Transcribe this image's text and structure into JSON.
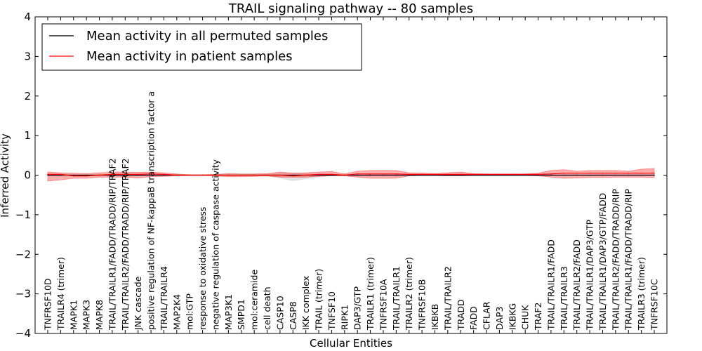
{
  "chart_data": {
    "type": "line",
    "title": "TRAIL signaling pathway -- 80 samples",
    "xlabel": "Cellular Entities",
    "ylabel": "Inferred Activity",
    "ylim": [
      -4,
      4
    ],
    "yticks": [
      4,
      3,
      2,
      1,
      0,
      -1,
      -2,
      -3,
      -4
    ],
    "ytick_labels": [
      "4",
      "3",
      "2",
      "1",
      "0",
      "−1",
      "−2",
      "−3",
      "−4"
    ],
    "grid": false,
    "legend_position": "top-left",
    "categories": [
      "TNFRSF10D",
      "TRAILR4 (trimer)",
      "MAPK1",
      "MAPK3",
      "MAPK8",
      "TRAIL/TRAILR1/FADD/TRADD/RIP/TRAF2",
      "TRAIL/TRAILR2/FADD/TRADD/RIP/TRAF2",
      "JNK cascade",
      "positive regulation of NF-kappaB transcription factor a",
      "TRAIL/TRAILR4",
      "MAP2K4",
      "mol:GTP",
      "response to oxidative stress",
      "negative regulation of caspase activity",
      "MAP3K1",
      "SMPD1",
      "mol:ceramide",
      "cell death",
      "CASP10",
      "CASP8",
      "IKK complex",
      "TRAIL (trimer)",
      "TNFSF10",
      "RIPK1",
      "DAP3/GTP",
      "TRAILR1 (trimer)",
      "TNFRSF10A",
      "TRAIL/TRAILR1",
      "TRAILR2 (trimer)",
      "TNFRSF10B",
      "IKBKB",
      "TRAIL/TRAILR2",
      "TRADD",
      "FADD",
      "CFLAR",
      "DAP3",
      "IKBKG",
      "CHUK",
      "TRAF2",
      "TRAIL/TRAILR1/FADD",
      "TRAIL/TRAILR3",
      "TRAIL/TRAILR2/FADD",
      "TRAIL/TRAILR1/DAP3/GTP",
      "TRAIL/TRAILR1/DAP3/GTP/FADD",
      "TRAIL/TRAILR2/FADD/TRADD/RIP",
      "TRAIL/TRAILR1/FADD/TRADD/RIP",
      "TRAILR3 (trimer)",
      "TNFRSF10C"
    ],
    "series": [
      {
        "name": "Mean activity in all permuted samples",
        "color": "#000000",
        "values": [
          0.0,
          0.0,
          0.0,
          0.0,
          0.0,
          0.0,
          0.0,
          0.0,
          0.0,
          0.0,
          0.0,
          0.0,
          0.0,
          0.0,
          0.0,
          0.0,
          0.0,
          0.0,
          0.0,
          0.0,
          0.0,
          0.0,
          0.0,
          0.0,
          0.0,
          0.0,
          0.0,
          0.0,
          0.0,
          0.0,
          0.0,
          0.0,
          0.0,
          0.0,
          0.0,
          0.0,
          0.0,
          0.0,
          0.0,
          0.0,
          0.0,
          0.0,
          0.0,
          0.0,
          0.0,
          0.0,
          0.0,
          0.0
        ],
        "band_upper": [
          0.03,
          0.03,
          0.02,
          0.02,
          0.02,
          0.03,
          0.03,
          0.03,
          0.02,
          0.02,
          0.02,
          0.01,
          0.01,
          0.01,
          0.02,
          0.02,
          0.02,
          0.03,
          0.05,
          0.06,
          0.05,
          0.03,
          0.02,
          0.02,
          0.02,
          0.02,
          0.02,
          0.02,
          0.02,
          0.02,
          0.02,
          0.02,
          0.02,
          0.02,
          0.02,
          0.02,
          0.02,
          0.02,
          0.02,
          0.02,
          0.02,
          0.02,
          0.02,
          0.02,
          0.02,
          0.02,
          0.02,
          0.02
        ],
        "band_lower": [
          -0.03,
          -0.03,
          -0.02,
          -0.02,
          -0.02,
          -0.03,
          -0.03,
          -0.03,
          -0.02,
          -0.02,
          -0.02,
          -0.01,
          -0.01,
          -0.01,
          -0.02,
          -0.02,
          -0.02,
          -0.03,
          -0.08,
          -0.15,
          -0.1,
          -0.05,
          -0.02,
          -0.02,
          -0.02,
          -0.02,
          -0.02,
          -0.02,
          -0.02,
          -0.02,
          -0.02,
          -0.02,
          -0.02,
          -0.02,
          -0.02,
          -0.02,
          -0.02,
          -0.02,
          -0.02,
          -0.02,
          -0.02,
          -0.02,
          -0.02,
          -0.02,
          -0.02,
          -0.02,
          -0.02,
          -0.02
        ]
      },
      {
        "name": "Mean activity in patient samples",
        "color": "#ff0000",
        "values": [
          0.02,
          0.02,
          -0.02,
          -0.02,
          0.0,
          0.02,
          0.02,
          0.02,
          0.03,
          0.02,
          0.0,
          0.0,
          0.0,
          0.0,
          0.0,
          0.0,
          0.0,
          0.0,
          0.0,
          -0.02,
          0.0,
          0.02,
          0.02,
          0.0,
          0.03,
          0.03,
          0.03,
          0.03,
          0.02,
          0.02,
          0.02,
          0.02,
          0.02,
          0.02,
          0.02,
          0.02,
          0.02,
          0.02,
          0.02,
          0.03,
          0.05,
          0.05,
          0.05,
          0.05,
          0.05,
          0.05,
          0.05,
          0.05
        ],
        "band_upper": [
          0.08,
          0.06,
          0.05,
          0.04,
          0.06,
          0.08,
          0.08,
          0.07,
          0.08,
          0.06,
          0.03,
          0.01,
          0.01,
          0.02,
          0.04,
          0.03,
          0.03,
          0.04,
          0.08,
          0.05,
          0.06,
          0.08,
          0.09,
          0.03,
          0.1,
          0.12,
          0.12,
          0.12,
          0.06,
          0.05,
          0.04,
          0.06,
          0.08,
          0.04,
          0.03,
          0.03,
          0.03,
          0.03,
          0.05,
          0.12,
          0.14,
          0.1,
          0.12,
          0.12,
          0.12,
          0.1,
          0.15,
          0.17
        ],
        "band_lower": [
          -0.15,
          -0.12,
          -0.08,
          -0.08,
          -0.05,
          -0.05,
          -0.05,
          -0.07,
          -0.04,
          -0.03,
          -0.02,
          -0.01,
          -0.01,
          -0.02,
          -0.04,
          -0.04,
          -0.03,
          -0.02,
          -0.05,
          -0.05,
          -0.05,
          -0.03,
          -0.02,
          -0.02,
          -0.05,
          -0.08,
          -0.08,
          -0.08,
          -0.02,
          -0.01,
          -0.01,
          -0.02,
          -0.02,
          -0.01,
          -0.01,
          -0.01,
          -0.01,
          -0.01,
          -0.02,
          -0.05,
          -0.08,
          -0.07,
          -0.06,
          -0.06,
          -0.05,
          -0.05,
          -0.05,
          -0.06
        ]
      }
    ]
  },
  "colors": {
    "permuted_band": "#c8c8c8",
    "patient_band": "#ff0000",
    "axis": "#000000"
  }
}
